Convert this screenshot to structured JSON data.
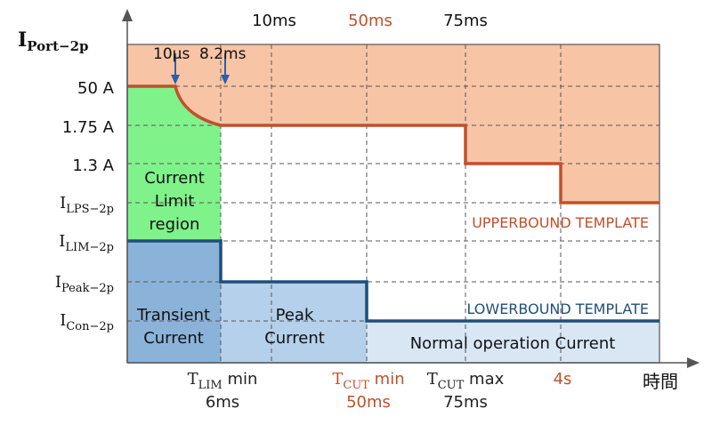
{
  "y_axis": {
    "title_main": "I",
    "title_sub": "Port−2p",
    "levels": [
      {
        "main": "50 A",
        "sub": ""
      },
      {
        "main": "1.75 A",
        "sub": ""
      },
      {
        "main": "1.3 A",
        "sub": ""
      },
      {
        "main": "I",
        "sub": "LPS−2p"
      },
      {
        "main": "I",
        "sub": "LIM−2p"
      },
      {
        "main": "I",
        "sub": "Peak−2p"
      },
      {
        "main": "I",
        "sub": "Con−2p"
      }
    ]
  },
  "x_axis": {
    "title": "時間",
    "bottom_labels": [
      {
        "main": "T",
        "sub": "LIM",
        "suffix": " min",
        "value": "6ms",
        "color": "#222222"
      },
      {
        "main": "T",
        "sub": "CUT",
        "suffix": " min",
        "value": "50ms",
        "color": "#c0502a"
      },
      {
        "main": "T",
        "sub": "CUT",
        "suffix": " max",
        "value": "75ms",
        "color": "#222222"
      },
      {
        "main": "4s",
        "sub": "",
        "suffix": "",
        "value": "",
        "color": "#c0502a"
      }
    ],
    "top_labels": [
      {
        "text": "10ms",
        "color": "#111111"
      },
      {
        "text": "50ms",
        "color": "#c0502a"
      },
      {
        "text": "75ms",
        "color": "#111111"
      }
    ]
  },
  "annotations": {
    "us10": "10μs",
    "ms82": "8.2ms"
  },
  "regions": {
    "current_limit": [
      "Current",
      "Limit",
      "region"
    ],
    "transient": [
      "Transient",
      "Current"
    ],
    "peak": [
      "Peak",
      "Current"
    ],
    "normal": "Normal operation Current"
  },
  "templates": {
    "upper": "UPPERBOUND TEMPLATE",
    "lower": "LOWERBOUND TEMPLATE"
  },
  "colors": {
    "upper_fill": "#f8c4a6",
    "upper_line": "#c0502a",
    "lower_line": "#1f4e79",
    "limit_green": "#7ff28a",
    "transient_blue": "#8bb3d9",
    "peak_blue": "#b4d0ea",
    "normal_blue": "#d9e7f5",
    "grid": "#555555"
  }
}
